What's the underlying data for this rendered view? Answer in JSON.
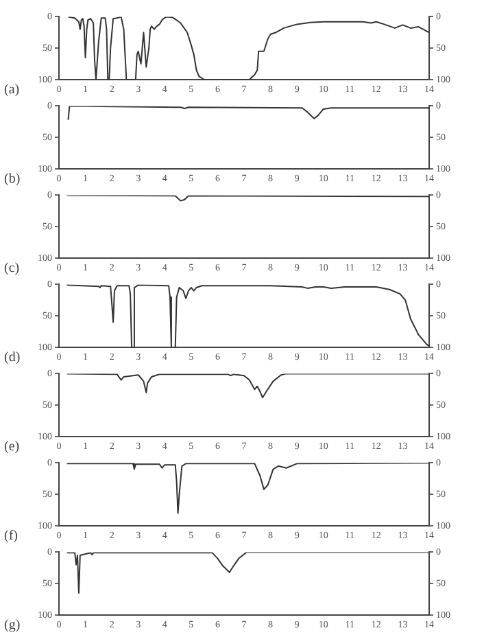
{
  "chart_data": [
    {
      "type": "line",
      "color": "#333333",
      "annotations": [
        "(a)"
      ],
      "xlim": [
        0,
        14
      ],
      "xticks": [
        0,
        1,
        2,
        3,
        4,
        5,
        6,
        7,
        8,
        9,
        10,
        11,
        12,
        13,
        14
      ],
      "ylim": [
        100,
        0
      ],
      "yticks": [
        0,
        50,
        100
      ],
      "y2lim": [
        100,
        0
      ],
      "y2ticks": [
        0,
        50,
        100
      ],
      "x": [
        0.35,
        0.6,
        0.75,
        0.8,
        0.85,
        0.9,
        0.95,
        1.0,
        1.05,
        1.1,
        1.2,
        1.3,
        1.35,
        1.4,
        1.45,
        1.5,
        1.6,
        1.75,
        1.8,
        1.85,
        1.9,
        1.95,
        2.05,
        2.2,
        2.35,
        2.45,
        2.55,
        2.9,
        2.95,
        3.0,
        3.05,
        3.1,
        3.2,
        3.3,
        3.4,
        3.45,
        3.5,
        3.6,
        3.7,
        3.8,
        3.9,
        4.05,
        4.3,
        4.6,
        4.85,
        5.0,
        5.1,
        5.2,
        5.3,
        5.5,
        7.2,
        7.4,
        7.5,
        7.55,
        7.75,
        7.9,
        8.0,
        8.2,
        8.5,
        9.0,
        9.5,
        10,
        11,
        11.5,
        11.8,
        12.0,
        12.3,
        12.7,
        13.0,
        13.3,
        13.6,
        14.0
      ],
      "values": [
        0,
        2,
        8,
        20,
        5,
        3,
        15,
        65,
        20,
        5,
        3,
        10,
        70,
        100,
        100,
        40,
        2,
        2,
        20,
        100,
        100,
        50,
        3,
        2,
        0,
        20,
        100,
        100,
        60,
        55,
        65,
        75,
        25,
        80,
        50,
        20,
        15,
        20,
        15,
        12,
        5,
        0,
        1,
        10,
        25,
        45,
        60,
        85,
        95,
        100,
        100,
        92,
        85,
        55,
        55,
        35,
        28,
        25,
        18,
        12,
        9,
        8,
        8,
        8,
        10,
        8,
        12,
        18,
        13,
        18,
        16,
        25
      ]
    },
    {
      "type": "line",
      "color": "#333333",
      "annotations": [
        "(b)"
      ],
      "xlim": [
        0,
        14
      ],
      "xticks": [
        0,
        1,
        2,
        3,
        4,
        5,
        6,
        7,
        8,
        9,
        10,
        11,
        12,
        13,
        14
      ],
      "ylim": [
        100,
        0
      ],
      "yticks": [
        0,
        50,
        100
      ],
      "y2lim": [
        100,
        0
      ],
      "y2ticks": [
        0,
        50,
        100
      ],
      "x": [
        0.35,
        0.4,
        4.6,
        4.75,
        4.9,
        9.2,
        9.4,
        9.65,
        9.8,
        10.0,
        10.3,
        14
      ],
      "values": [
        22,
        0,
        2,
        4,
        2,
        3,
        10,
        20,
        15,
        5,
        3,
        3
      ]
    },
    {
      "type": "line",
      "color": "#333333",
      "annotations": [
        "(c)"
      ],
      "xlim": [
        0,
        14
      ],
      "xticks": [
        0,
        1,
        2,
        3,
        4,
        5,
        6,
        7,
        8,
        9,
        10,
        11,
        12,
        13,
        14
      ],
      "ylim": [
        100,
        0
      ],
      "yticks": [
        0,
        50,
        100
      ],
      "y2lim": [
        100,
        0
      ],
      "y2ticks": [
        0,
        50,
        100
      ],
      "x": [
        0.3,
        4.4,
        4.6,
        4.75,
        4.9,
        14
      ],
      "values": [
        0,
        1,
        9,
        7,
        1,
        2
      ]
    },
    {
      "type": "line",
      "color": "#333333",
      "annotations": [
        "(d)"
      ],
      "xlim": [
        0,
        14
      ],
      "xticks": [
        0,
        1,
        2,
        3,
        4,
        5,
        6,
        7,
        8,
        9,
        10,
        11,
        12,
        13,
        14
      ],
      "ylim": [
        100,
        0
      ],
      "yticks": [
        0,
        50,
        100
      ],
      "y2lim": [
        100,
        0
      ],
      "y2ticks": [
        0,
        50,
        100
      ],
      "x": [
        0.3,
        1.5,
        1.55,
        1.6,
        1.95,
        2.0,
        2.05,
        2.1,
        2.2,
        2.65,
        2.7,
        2.75,
        2.8,
        2.85,
        3.0,
        4.15,
        4.2,
        4.25,
        4.4,
        4.45,
        4.55,
        4.7,
        4.8,
        4.9,
        5.0,
        5.1,
        5.2,
        5.4,
        7,
        8,
        9.2,
        9.4,
        9.7,
        10.0,
        10.3,
        10.8,
        12.0,
        12.5,
        12.9,
        13.1,
        13.3,
        13.6,
        13.9,
        14.0
      ],
      "values": [
        1,
        3,
        5,
        2,
        3,
        30,
        60,
        10,
        2,
        2,
        15,
        100,
        100,
        5,
        1,
        2,
        20,
        100,
        100,
        20,
        5,
        10,
        22,
        10,
        5,
        10,
        5,
        2,
        2,
        2,
        4,
        6,
        4,
        4,
        6,
        4,
        4,
        8,
        15,
        25,
        55,
        80,
        95,
        98
      ]
    },
    {
      "type": "line",
      "color": "#333333",
      "annotations": [
        "(e)"
      ],
      "xlim": [
        0,
        14
      ],
      "xticks": [
        0,
        1,
        2,
        3,
        4,
        5,
        6,
        7,
        8,
        9,
        10,
        11,
        12,
        13,
        14
      ],
      "ylim": [
        100,
        0
      ],
      "yticks": [
        0,
        50,
        100
      ],
      "y2lim": [
        100,
        0
      ],
      "y2ticks": [
        0,
        50,
        100
      ],
      "x": [
        0.3,
        2.2,
        2.35,
        2.45,
        3.0,
        3.2,
        3.3,
        3.35,
        3.5,
        3.8,
        6.4,
        6.5,
        6.6,
        7.0,
        7.2,
        7.4,
        7.5,
        7.6,
        7.7,
        7.85,
        8.1,
        8.4,
        8.6,
        14
      ],
      "values": [
        0,
        1,
        10,
        5,
        2,
        12,
        30,
        15,
        5,
        1,
        1,
        3,
        1,
        3,
        10,
        25,
        20,
        28,
        38,
        28,
        12,
        2,
        0,
        0
      ]
    },
    {
      "type": "line",
      "color": "#333333",
      "annotations": [
        "(f)"
      ],
      "xlim": [
        0,
        14
      ],
      "xticks": [
        0,
        1,
        2,
        3,
        4,
        5,
        6,
        7,
        8,
        9,
        10,
        11,
        12,
        13,
        14
      ],
      "ylim": [
        100,
        0
      ],
      "yticks": [
        0,
        50,
        100
      ],
      "y2lim": [
        100,
        0
      ],
      "y2ticks": [
        0,
        50,
        100
      ],
      "x": [
        0.3,
        2.8,
        2.85,
        2.9,
        3.8,
        3.9,
        4.0,
        4.4,
        4.45,
        4.5,
        4.55,
        4.65,
        4.8,
        7.4,
        7.6,
        7.75,
        7.9,
        8.1,
        8.3,
        8.6,
        9.0,
        14
      ],
      "values": [
        1,
        1,
        10,
        2,
        2,
        8,
        3,
        3,
        30,
        80,
        50,
        5,
        1,
        1,
        20,
        42,
        35,
        10,
        5,
        8,
        1,
        0
      ]
    },
    {
      "type": "line",
      "color": "#333333",
      "annotations": [
        "(g)"
      ],
      "xlim": [
        0,
        14
      ],
      "xticks": [
        0,
        1,
        2,
        3,
        4,
        5,
        6,
        7,
        8,
        9,
        10,
        11,
        12,
        13,
        14
      ],
      "ylim": [
        100,
        0
      ],
      "yticks": [
        0,
        50,
        100
      ],
      "y2lim": [
        100,
        0
      ],
      "y2ticks": [
        0,
        50,
        100
      ],
      "x": [
        0.3,
        0.6,
        0.65,
        0.7,
        0.75,
        0.8,
        1.2,
        1.25,
        1.3,
        5.8,
        6.0,
        6.2,
        6.45,
        6.6,
        6.8,
        7.1,
        14
      ],
      "values": [
        1,
        1,
        20,
        5,
        65,
        5,
        1,
        4,
        1,
        1,
        10,
        22,
        32,
        22,
        10,
        0,
        0
      ]
    }
  ]
}
